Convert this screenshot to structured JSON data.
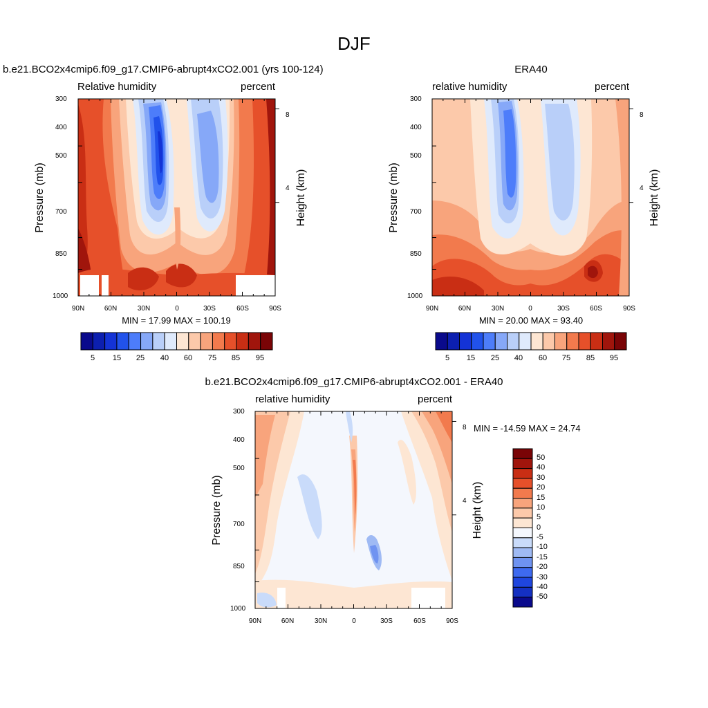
{
  "figure": {
    "title": "DJF"
  },
  "chart_data": [
    {
      "type": "heatmap",
      "title": "b.e21.BCO2x4cmip6.f09_g17.CMIP6-abrupt4xCO2.001 (yrs 100-124)",
      "left_subtitle": "Relative humidity",
      "right_subtitle": "percent",
      "xlabel": "",
      "ylabel": "Pressure (mb)",
      "y2label": "Height (km)",
      "x_ticks": [
        "90N",
        "60N",
        "30N",
        "0",
        "30S",
        "60S",
        "90S"
      ],
      "y_ticks": [
        "300",
        "400",
        "500",
        "700",
        "850",
        "1000"
      ],
      "y2_ticks": [
        "8",
        "4"
      ],
      "minmax_text": "MIN =  17.99  MAX = 100.19",
      "min": 17.99,
      "max": 100.19,
      "colorbar": {
        "orientation": "horizontal",
        "labels": [
          "5",
          "15",
          "25",
          "40",
          "60",
          "75",
          "85",
          "95"
        ]
      }
    },
    {
      "type": "heatmap",
      "title": "ERA40",
      "left_subtitle": "relative humidity",
      "right_subtitle": "percent",
      "xlabel": "",
      "ylabel": "Pressure (mb)",
      "y2label": "Height (km)",
      "x_ticks": [
        "90N",
        "60N",
        "30N",
        "0",
        "30S",
        "60S",
        "90S"
      ],
      "y_ticks": [
        "300",
        "400",
        "500",
        "700",
        "850",
        "1000"
      ],
      "y2_ticks": [
        "8",
        "4"
      ],
      "minmax_text": "MIN =  20.00  MAX =  93.40",
      "min": 20.0,
      "max": 93.4,
      "colorbar": {
        "orientation": "horizontal",
        "labels": [
          "5",
          "15",
          "25",
          "40",
          "60",
          "75",
          "85",
          "95"
        ]
      }
    },
    {
      "type": "heatmap",
      "title": "b.e21.BCO2x4cmip6.f09_g17.CMIP6-abrupt4xCO2.001 - ERA40",
      "left_subtitle": "relative humidity",
      "right_subtitle": "percent",
      "xlabel": "",
      "ylabel": "Pressure (mb)",
      "y2label": "Height (km)",
      "x_ticks": [
        "90N",
        "60N",
        "30N",
        "0",
        "30S",
        "60S",
        "90S"
      ],
      "y_ticks": [
        "300",
        "400",
        "500",
        "700",
        "850",
        "1000"
      ],
      "y2_ticks": [
        "8",
        "4"
      ],
      "minmax_text": "MIN = -14.59  MAX =  24.74",
      "min": -14.59,
      "max": 24.74,
      "colorbar": {
        "orientation": "vertical",
        "labels": [
          "50",
          "40",
          "30",
          "20",
          "15",
          "10",
          "5",
          "0",
          "-5",
          "-10",
          "-15",
          "-20",
          "-30",
          "-40",
          "-50"
        ]
      }
    }
  ],
  "palette": {
    "abs_fill": [
      "#0a0a8c",
      "#0c1fb0",
      "#1433d6",
      "#2152eb",
      "#4d7dfa",
      "#86a8f8",
      "#b9cff9",
      "#dfeafc",
      "#fde6d3",
      "#fcc9aa",
      "#f8a47c",
      "#f27a4d",
      "#e6502a",
      "#c92e14",
      "#a0150c",
      "#7a0406"
    ],
    "diff_fill": [
      "#7a0406",
      "#a0150c",
      "#c92e14",
      "#e6502a",
      "#f27a4d",
      "#f8a47c",
      "#fcc9aa",
      "#fde6d3",
      "#f4f7fd",
      "#c9dbfa",
      "#9fbaf4",
      "#6f93f1",
      "#3e6af0",
      "#1f46df",
      "#1430c2",
      "#0a0a8c"
    ]
  }
}
